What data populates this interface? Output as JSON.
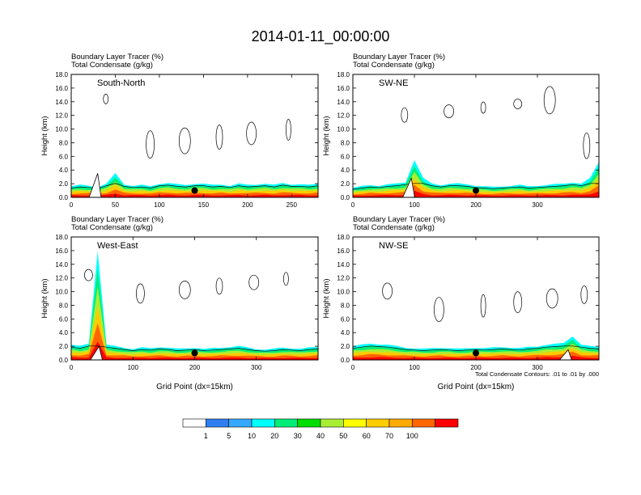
{
  "title": "2014-01-11_00:00:00",
  "chart_data": [
    {
      "type": "heatmap",
      "panel_label": "South-North",
      "subtitle_line1": "Boundary Layer Tracer   (%)",
      "subtitle_line2": "Total Condensate   (g/kg)",
      "xlabel": "",
      "ylabel": "Height (km)",
      "xlim": [
        0,
        280
      ],
      "ylim": [
        0,
        18
      ],
      "x_ticks": [
        "0",
        "50",
        "100",
        "150",
        "200",
        "250"
      ],
      "x_tick_values": [
        0,
        50,
        100,
        150,
        200,
        250
      ],
      "y_ticks": [
        "0.0",
        "2.0",
        "4.0",
        "6.0",
        "8.0",
        "10.0",
        "12.0",
        "14.0",
        "16.0",
        "18.0"
      ],
      "tracer_top_km": [
        1.6,
        1.8,
        1.7,
        1.5,
        2.0,
        3.5,
        1.9,
        1.7,
        1.8,
        1.6,
        2.0,
        2.1,
        1.9,
        1.8,
        2.0,
        2.0,
        1.8,
        1.9,
        1.7,
        2.0,
        1.8,
        1.9,
        2.0,
        1.8,
        2.1,
        1.9,
        1.9,
        1.8,
        2.0
      ],
      "terrain_peak": {
        "x": 30,
        "height_km": 3.5
      },
      "marker": {
        "x": 140,
        "height_km": 1.0
      },
      "note": ""
    },
    {
      "type": "heatmap",
      "panel_label": "SW-NE",
      "subtitle_line1": "Boundary Layer Tracer   (%)",
      "subtitle_line2": "Total Condensate   (g/kg)",
      "xlabel": "",
      "ylabel": "Height (km)",
      "xlim": [
        0,
        400
      ],
      "ylim": [
        0,
        18
      ],
      "x_ticks": [
        "0",
        "100",
        "200",
        "300"
      ],
      "x_tick_values": [
        0,
        100,
        200,
        300
      ],
      "y_ticks": [
        "0.0",
        "2.0",
        "4.0",
        "6.0",
        "8.0",
        "10.0",
        "12.0",
        "14.0",
        "16.0",
        "18.0"
      ],
      "tracer_top_km": [
        1.4,
        1.6,
        1.8,
        1.7,
        1.9,
        2.0,
        2.2,
        5.5,
        2.8,
        2.0,
        1.8,
        2.0,
        2.0,
        1.9,
        1.7,
        1.6,
        1.5,
        1.6,
        1.7,
        1.8,
        1.6,
        1.7,
        1.8,
        1.9,
        2.0,
        2.2,
        2.0,
        2.8,
        5.2
      ],
      "terrain_peak": {
        "x": 95,
        "height_km": 2.8
      },
      "marker": {
        "x": 200,
        "height_km": 1.0
      },
      "note": ""
    },
    {
      "type": "heatmap",
      "panel_label": "West-East",
      "subtitle_line1": "Boundary Layer Tracer   (%)",
      "subtitle_line2": "Total Condensate   (g/kg)",
      "xlabel": "Grid Point (dx=15km)",
      "ylabel": "Height (km)",
      "xlim": [
        0,
        400
      ],
      "ylim": [
        0,
        18
      ],
      "x_ticks": [
        "0",
        "100",
        "200",
        "300"
      ],
      "x_tick_values": [
        0,
        100,
        200,
        300
      ],
      "y_ticks": [
        "0.0",
        "2.0",
        "4.0",
        "6.0",
        "8.0",
        "10.0",
        "12.0",
        "14.0",
        "16.0",
        "18.0"
      ],
      "tracer_top_km": [
        2.2,
        2.0,
        2.4,
        16.0,
        2.2,
        2.0,
        1.8,
        1.6,
        1.8,
        1.7,
        1.9,
        1.8,
        1.6,
        1.7,
        1.8,
        1.6,
        1.7,
        1.8,
        1.9,
        2.0,
        1.8,
        1.6,
        1.5,
        1.6,
        1.8,
        1.7,
        1.6,
        1.8,
        1.9
      ],
      "terrain_peak": {
        "x": 45,
        "height_km": 2.0
      },
      "marker": {
        "x": 200,
        "height_km": 1.0
      },
      "note": ""
    },
    {
      "type": "heatmap",
      "panel_label": "NW-SE",
      "subtitle_line1": "Boundary Layer Tracer   (%)",
      "subtitle_line2": "Total Condensate   (g/kg)",
      "xlabel": "Grid Point (dx=15km)",
      "ylabel": "Height (km)",
      "xlim": [
        0,
        400
      ],
      "ylim": [
        0,
        18
      ],
      "x_ticks": [
        "0",
        "100",
        "200",
        "300"
      ],
      "x_tick_values": [
        0,
        100,
        200,
        300
      ],
      "y_ticks": [
        "0.0",
        "2.0",
        "4.0",
        "6.0",
        "8.0",
        "10.0",
        "12.0",
        "14.0",
        "16.0",
        "18.0"
      ],
      "tracer_top_km": [
        2.0,
        2.2,
        2.4,
        2.3,
        2.2,
        2.0,
        1.8,
        1.7,
        1.6,
        1.7,
        1.8,
        1.7,
        1.6,
        1.7,
        1.8,
        1.7,
        1.8,
        1.9,
        1.8,
        1.7,
        1.9,
        2.0,
        2.2,
        2.3,
        2.5,
        3.5,
        2.2,
        2.0,
        1.9
      ],
      "terrain_peak": {
        "x": 350,
        "height_km": 1.5
      },
      "marker": {
        "x": 200,
        "height_km": 1.0
      },
      "note": "Total Condensate Contours: .01 to .01 by .000"
    }
  ],
  "colorbar": {
    "labels": [
      "1",
      "5",
      "10",
      "20",
      "30",
      "40",
      "50",
      "60",
      "70",
      "100"
    ],
    "colors": [
      "#ffffff",
      "#2f7ff0",
      "#34a9ff",
      "#00ffff",
      "#00ee77",
      "#00dd00",
      "#aaee33",
      "#ffff00",
      "#ffcc00",
      "#ffaa00",
      "#ff6600",
      "#ff0000"
    ]
  }
}
